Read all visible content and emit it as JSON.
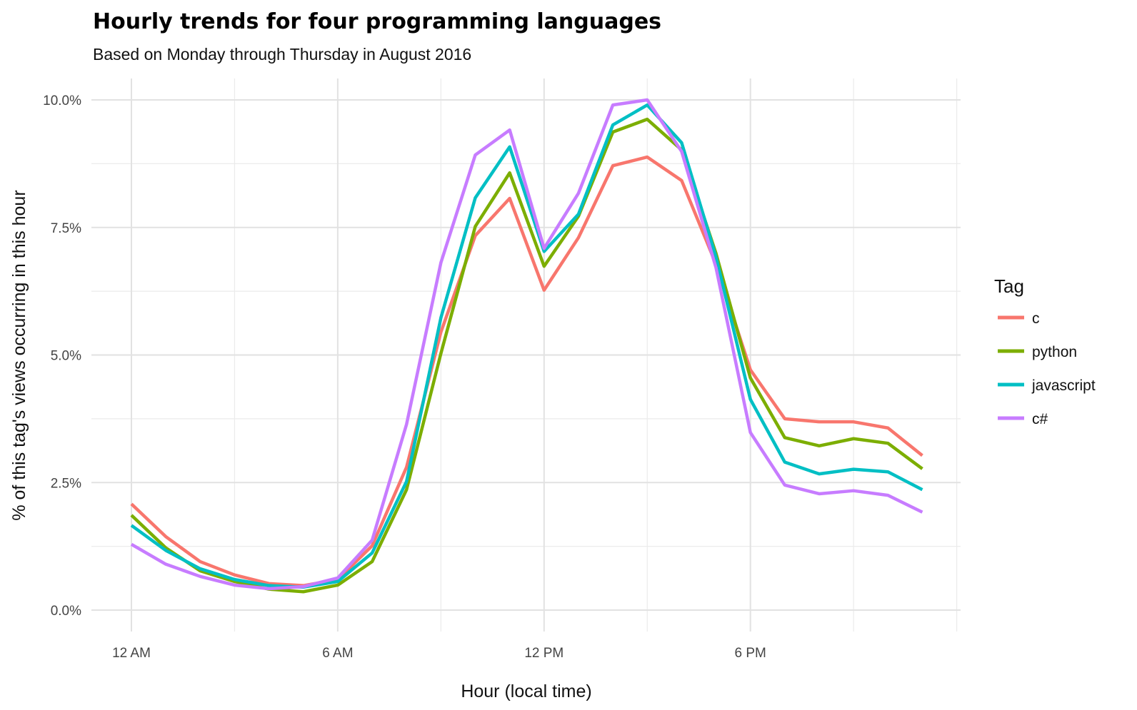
{
  "chart_data": {
    "type": "line",
    "title": "Hourly trends for four programming languages",
    "subtitle": "Based on Monday through Thursday in August 2016",
    "xlabel": "Hour (local time)",
    "ylabel": "% of this tag's views occurring in this hour",
    "x": [
      0,
      1,
      2,
      3,
      4,
      5,
      6,
      7,
      8,
      9,
      10,
      11,
      12,
      13,
      14,
      15,
      16,
      17,
      18,
      19,
      20,
      21,
      22,
      23
    ],
    "xlim": [
      -1.2,
      24.1
    ],
    "ylim": [
      -0.4,
      10.4
    ],
    "x_ticks": [
      {
        "value": 0,
        "label": "12 AM"
      },
      {
        "value": 6,
        "label": "6 AM"
      },
      {
        "value": 12,
        "label": "12 PM"
      },
      {
        "value": 18,
        "label": "6 PM"
      }
    ],
    "y_ticks": [
      {
        "value": 0,
        "label": "0.0%"
      },
      {
        "value": 2.5,
        "label": "2.5%"
      },
      {
        "value": 5,
        "label": "5.0%"
      },
      {
        "value": 7.5,
        "label": "7.5%"
      },
      {
        "value": 10,
        "label": "10.0%"
      }
    ],
    "grid": true,
    "legend": {
      "title": "Tag",
      "placement": "right"
    },
    "series": [
      {
        "name": "c",
        "color": "#F8766D",
        "values": [
          2.08,
          1.44,
          0.95,
          0.69,
          0.52,
          0.48,
          0.6,
          1.26,
          2.8,
          5.45,
          7.34,
          8.07,
          6.27,
          7.3,
          8.71,
          8.88,
          8.42,
          6.78,
          4.71,
          3.75,
          3.69,
          3.69,
          3.57,
          3.03
        ]
      },
      {
        "name": "python",
        "color": "#7CAE00",
        "values": [
          1.86,
          1.22,
          0.77,
          0.56,
          0.41,
          0.36,
          0.49,
          0.95,
          2.36,
          5.03,
          7.52,
          8.57,
          6.74,
          7.72,
          9.37,
          9.62,
          9.02,
          6.99,
          4.55,
          3.38,
          3.22,
          3.36,
          3.27,
          2.77
        ]
      },
      {
        "name": "javascript",
        "color": "#00BFC4",
        "values": [
          1.66,
          1.17,
          0.81,
          0.6,
          0.48,
          0.45,
          0.56,
          1.12,
          2.52,
          5.73,
          8.08,
          9.08,
          7.03,
          7.76,
          9.51,
          9.9,
          9.16,
          6.92,
          4.13,
          2.9,
          2.67,
          2.76,
          2.71,
          2.36
        ]
      },
      {
        "name": "c#",
        "color": "#C77CFF",
        "values": [
          1.29,
          0.9,
          0.66,
          0.49,
          0.42,
          0.46,
          0.63,
          1.37,
          3.64,
          6.81,
          8.92,
          9.41,
          7.09,
          8.17,
          9.9,
          10.0,
          8.99,
          6.71,
          3.48,
          2.45,
          2.28,
          2.34,
          2.25,
          1.92
        ]
      }
    ]
  }
}
